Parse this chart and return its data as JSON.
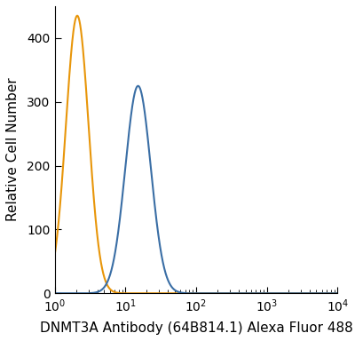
{
  "title": "",
  "xlabel": "DNMT3A Antibody (64B814.1) Alexa Fluor 488",
  "ylabel": "Relative Cell Number",
  "xlim": [
    1,
    10000
  ],
  "ylim": [
    0,
    450
  ],
  "yticks": [
    0,
    100,
    200,
    300,
    400
  ],
  "orange_peak_log": 0.32,
  "orange_peak_height": 435,
  "orange_sigma": 0.16,
  "blue_peak_log": 1.18,
  "blue_peak_height": 325,
  "blue_peak_height2": 310,
  "blue_peak_log2": 1.15,
  "blue_sigma": 0.18,
  "blue_sigma2": 0.09,
  "orange_color": "#E8960A",
  "blue_color": "#3A6EA5",
  "linewidth": 1.5,
  "bg_color": "#FFFFFF",
  "fig_width": 4.0,
  "fig_height": 3.84,
  "dpi": 100
}
